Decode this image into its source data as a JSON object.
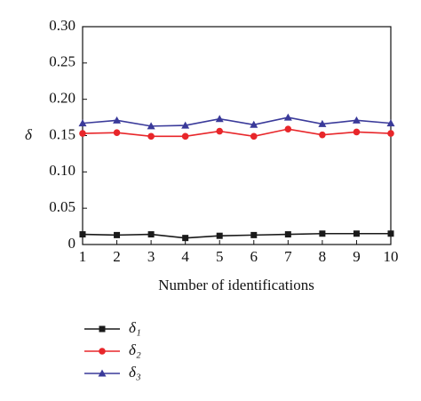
{
  "chart_data": {
    "type": "line",
    "x_label": "Number of identifications",
    "y_label": "δ",
    "x": [
      1,
      2,
      3,
      4,
      5,
      6,
      7,
      8,
      9,
      10
    ],
    "xlim": [
      1,
      10
    ],
    "xticks": [
      1,
      2,
      3,
      4,
      5,
      6,
      7,
      8,
      9,
      10
    ],
    "ylim": [
      0,
      0.3
    ],
    "yticks": [
      0,
      0.05,
      {
        "value": 0.1,
        "label": "0.10"
      },
      0.15,
      {
        "value": 0.2,
        "label": "0.20"
      },
      0.25,
      {
        "value": 0.3,
        "label": "0.30"
      }
    ],
    "series": [
      {
        "name": "δ₁",
        "color": "#1a1a1a",
        "marker": "square",
        "values": [
          0.014,
          0.013,
          0.014,
          0.009,
          0.012,
          0.013,
          0.014,
          0.015,
          0.015,
          0.015
        ]
      },
      {
        "name": "δ₂",
        "color": "#e8262a",
        "marker": "circle",
        "values": [
          0.153,
          0.154,
          0.149,
          0.149,
          0.156,
          0.149,
          0.159,
          0.151,
          0.155,
          0.153
        ]
      },
      {
        "name": "δ₃",
        "color": "#3a3a9a",
        "marker": "triangle",
        "values": [
          0.167,
          0.171,
          0.163,
          0.164,
          0.173,
          0.165,
          0.175,
          0.166,
          0.171,
          0.167
        ]
      }
    ]
  }
}
